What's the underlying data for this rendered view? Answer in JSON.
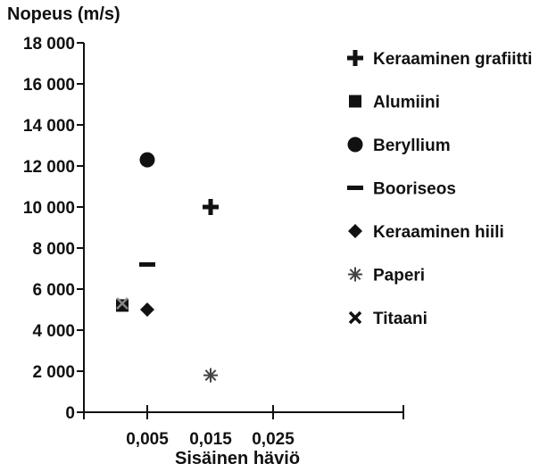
{
  "chart_data": {
    "type": "scatter",
    "title": "",
    "ylabel": "Nopeus (m/s)",
    "xlabel": "Sisäinen häviö",
    "ylim": [
      0,
      18000
    ],
    "y_ticks": [
      {
        "value": 0,
        "label": "0"
      },
      {
        "value": 2000,
        "label": "2 000"
      },
      {
        "value": 4000,
        "label": "4 000"
      },
      {
        "value": 6000,
        "label": "6 000"
      },
      {
        "value": 8000,
        "label": "8 000"
      },
      {
        "value": 10000,
        "label": "10 000"
      },
      {
        "value": 12000,
        "label": "12 000"
      },
      {
        "value": 14000,
        "label": "14 000"
      },
      {
        "value": 16000,
        "label": "16 000"
      },
      {
        "value": 18000,
        "label": "18 000"
      }
    ],
    "x_ticks": [
      "0,005",
      "0,015",
      "0,025"
    ],
    "grid": false,
    "legend_position": "right",
    "series": [
      {
        "name": "Keraaminen grafiitti",
        "marker": "plus",
        "x": "0,015",
        "y": 10000
      },
      {
        "name": "Alumiini",
        "marker": "square",
        "x": "0,003",
        "y": 5200
      },
      {
        "name": "Beryllium",
        "marker": "circle",
        "x": "0,005",
        "y": 12300
      },
      {
        "name": "Booriseos",
        "marker": "dash",
        "x": "0,005",
        "y": 7200
      },
      {
        "name": "Keraaminen hiili",
        "marker": "diamond",
        "x": "0,005",
        "y": 5000
      },
      {
        "name": "Paperi",
        "marker": "asterisk",
        "x": "0,015",
        "y": 1800
      },
      {
        "name": "Titaani",
        "marker": "cross",
        "x": "0,003",
        "y": 5300
      }
    ]
  }
}
